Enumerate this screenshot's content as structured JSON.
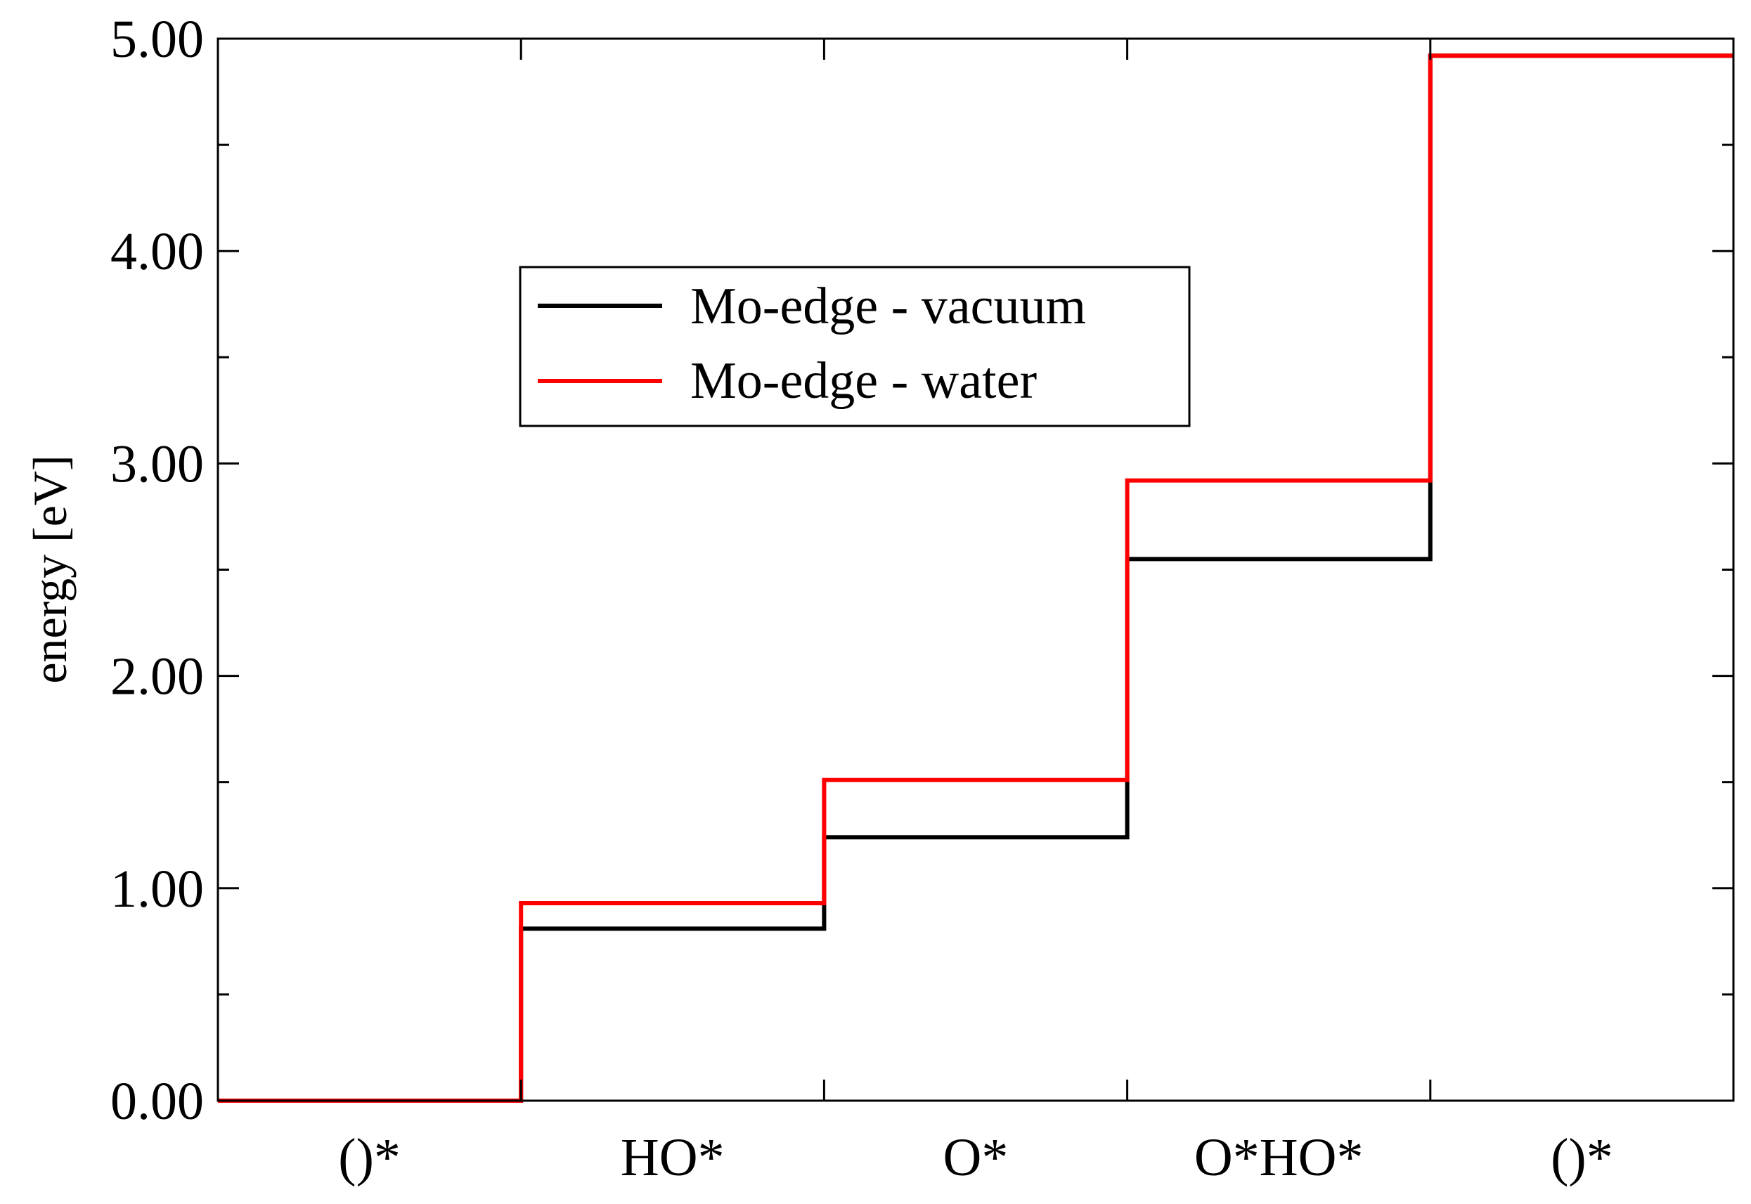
{
  "chart_data": {
    "type": "line",
    "step": true,
    "title": "",
    "xlabel": "",
    "ylabel": "energy [eV]",
    "categories": [
      "()*",
      "HO*",
      "O*",
      "O*HO*",
      "()*"
    ],
    "ylim": [
      0,
      5
    ],
    "yticks": [
      "0.00",
      "1.00",
      "2.00",
      "3.00",
      "4.00",
      "5.00"
    ],
    "legend_position": "upper-center",
    "grid": false,
    "series": [
      {
        "name": "Mo-edge - vacuum",
        "color": "#000000",
        "values": [
          0.0,
          0.81,
          1.24,
          2.55,
          4.92
        ]
      },
      {
        "name": "Mo-edge - water",
        "color": "#ff0000",
        "values": [
          0.0,
          0.93,
          1.51,
          2.92,
          4.92
        ]
      }
    ]
  }
}
